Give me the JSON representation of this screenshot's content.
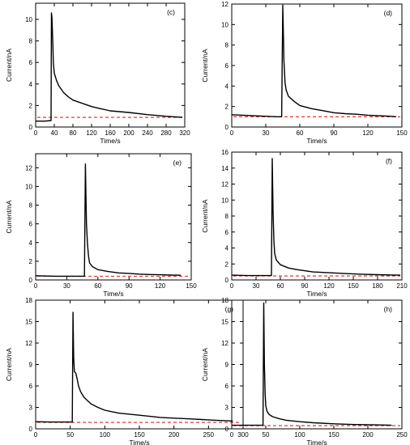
{
  "chart_data": [
    {
      "type": "line",
      "panel_label": "(c)",
      "xlabel": "Time/s",
      "ylabel": "Current/nA",
      "xlim": [
        0,
        320
      ],
      "ylim": [
        0,
        11.5
      ],
      "xticks": [
        0,
        40,
        80,
        120,
        160,
        200,
        240,
        280,
        320
      ],
      "yticks": [
        0,
        2,
        4,
        6,
        8,
        10
      ],
      "baseline": 0.9,
      "series": [
        {
          "x": [
            0,
            6,
            20,
            33,
            34,
            35,
            37,
            38,
            40,
            45,
            50,
            60,
            70,
            80,
            100,
            120,
            140,
            160,
            200,
            240,
            280,
            300,
            315
          ],
          "y": [
            0.55,
            0.55,
            0.55,
            0.6,
            10.6,
            10.2,
            7.5,
            6.0,
            5.0,
            4.3,
            3.8,
            3.2,
            2.8,
            2.5,
            2.2,
            1.9,
            1.7,
            1.5,
            1.35,
            1.15,
            1.0,
            0.95,
            0.9
          ]
        }
      ]
    },
    {
      "type": "line",
      "panel_label": "(d)",
      "xlabel": "Time/s",
      "ylabel": "Current/nA",
      "xlim": [
        0,
        150
      ],
      "ylim": [
        0,
        12
      ],
      "xticks": [
        0,
        30,
        60,
        90,
        120,
        150
      ],
      "yticks": [
        0,
        2,
        4,
        6,
        8,
        10,
        12
      ],
      "baseline": 1.0,
      "series": [
        {
          "x": [
            0,
            20,
            40,
            44,
            45,
            46,
            47,
            48,
            50,
            55,
            60,
            70,
            80,
            90,
            100,
            110,
            120,
            130,
            140,
            145
          ],
          "y": [
            1.2,
            1.1,
            1.0,
            1.0,
            11.9,
            6.5,
            4.3,
            3.6,
            3.0,
            2.5,
            2.1,
            1.8,
            1.6,
            1.4,
            1.3,
            1.25,
            1.15,
            1.1,
            1.05,
            1.0
          ]
        }
      ]
    },
    {
      "type": "line",
      "panel_label": "(e)",
      "xlabel": "Time/s",
      "ylabel": "Current/nA",
      "xlim": [
        0,
        150
      ],
      "ylim": [
        0,
        13.5
      ],
      "xticks": [
        0,
        30,
        60,
        90,
        120,
        150
      ],
      "yticks": [
        0,
        2,
        4,
        6,
        8,
        10,
        12
      ],
      "baseline": 0.4,
      "series": [
        {
          "x": [
            0,
            20,
            40,
            47,
            48,
            49,
            50,
            51,
            52,
            55,
            60,
            70,
            80,
            90,
            100,
            110,
            120,
            130,
            140
          ],
          "y": [
            0.45,
            0.4,
            0.4,
            0.4,
            12.4,
            6.0,
            3.8,
            2.5,
            1.8,
            1.4,
            1.1,
            0.9,
            0.75,
            0.7,
            0.62,
            0.58,
            0.55,
            0.52,
            0.5
          ]
        }
      ]
    },
    {
      "type": "line",
      "panel_label": "(f)",
      "xlabel": "Time/s",
      "ylabel": "Current/nA",
      "xlim": [
        0,
        210
      ],
      "ylim": [
        0,
        16
      ],
      "xticks": [
        0,
        30,
        60,
        90,
        120,
        150,
        180,
        210
      ],
      "yticks": [
        0,
        2,
        4,
        6,
        8,
        10,
        12,
        14,
        16
      ],
      "baseline": 0.5,
      "series": [
        {
          "x": [
            0,
            20,
            40,
            49,
            50,
            51,
            52,
            53,
            55,
            60,
            70,
            80,
            90,
            100,
            120,
            140,
            160,
            180,
            200,
            208
          ],
          "y": [
            0.6,
            0.55,
            0.55,
            0.55,
            15.2,
            8.5,
            5.0,
            3.3,
            2.5,
            1.9,
            1.5,
            1.3,
            1.15,
            1.0,
            0.9,
            0.8,
            0.72,
            0.66,
            0.62,
            0.6
          ]
        }
      ]
    },
    {
      "type": "line",
      "panel_label": "(g)",
      "xlabel": "Time/s",
      "ylabel": "Current/nA",
      "xlim": [
        0,
        300
      ],
      "ylim": [
        0,
        18
      ],
      "xticks": [
        0,
        50,
        100,
        150,
        200,
        250,
        300
      ],
      "yticks": [
        0,
        3,
        6,
        9,
        12,
        15,
        18
      ],
      "baseline": 0.9,
      "series": [
        {
          "x": [
            0,
            20,
            40,
            53,
            54,
            55,
            56,
            58,
            60,
            62,
            65,
            70,
            80,
            90,
            100,
            120,
            140,
            160,
            180,
            200,
            220,
            240,
            260,
            285
          ],
          "y": [
            1.0,
            0.95,
            0.95,
            0.95,
            16.3,
            10.0,
            8.0,
            7.8,
            7.0,
            6.0,
            5.2,
            4.4,
            3.5,
            3.0,
            2.6,
            2.2,
            2.0,
            1.8,
            1.6,
            1.5,
            1.4,
            1.3,
            1.2,
            1.1
          ]
        }
      ]
    },
    {
      "type": "line",
      "panel_label": "(h)",
      "xlabel": "Time/s",
      "ylabel": "Current/nA",
      "xlim": [
        0,
        250
      ],
      "ylim": [
        0,
        18
      ],
      "xticks": [
        0,
        50,
        100,
        150,
        200,
        250
      ],
      "yticks": [
        0,
        3,
        6,
        9,
        12,
        15,
        18
      ],
      "baseline": 0.45,
      "series": [
        {
          "x": [
            0,
            20,
            40,
            46,
            47,
            48,
            49,
            50,
            52,
            55,
            60,
            70,
            80,
            100,
            120,
            150,
            180,
            210,
            235
          ],
          "y": [
            0.5,
            0.5,
            0.5,
            0.5,
            17.6,
            9.0,
            5.0,
            3.2,
            2.4,
            2.0,
            1.7,
            1.4,
            1.2,
            1.0,
            0.85,
            0.7,
            0.6,
            0.55,
            0.5
          ]
        }
      ]
    }
  ],
  "colors": {
    "curve": "#000000",
    "baseline": "#e02020",
    "axis": "#000000"
  }
}
